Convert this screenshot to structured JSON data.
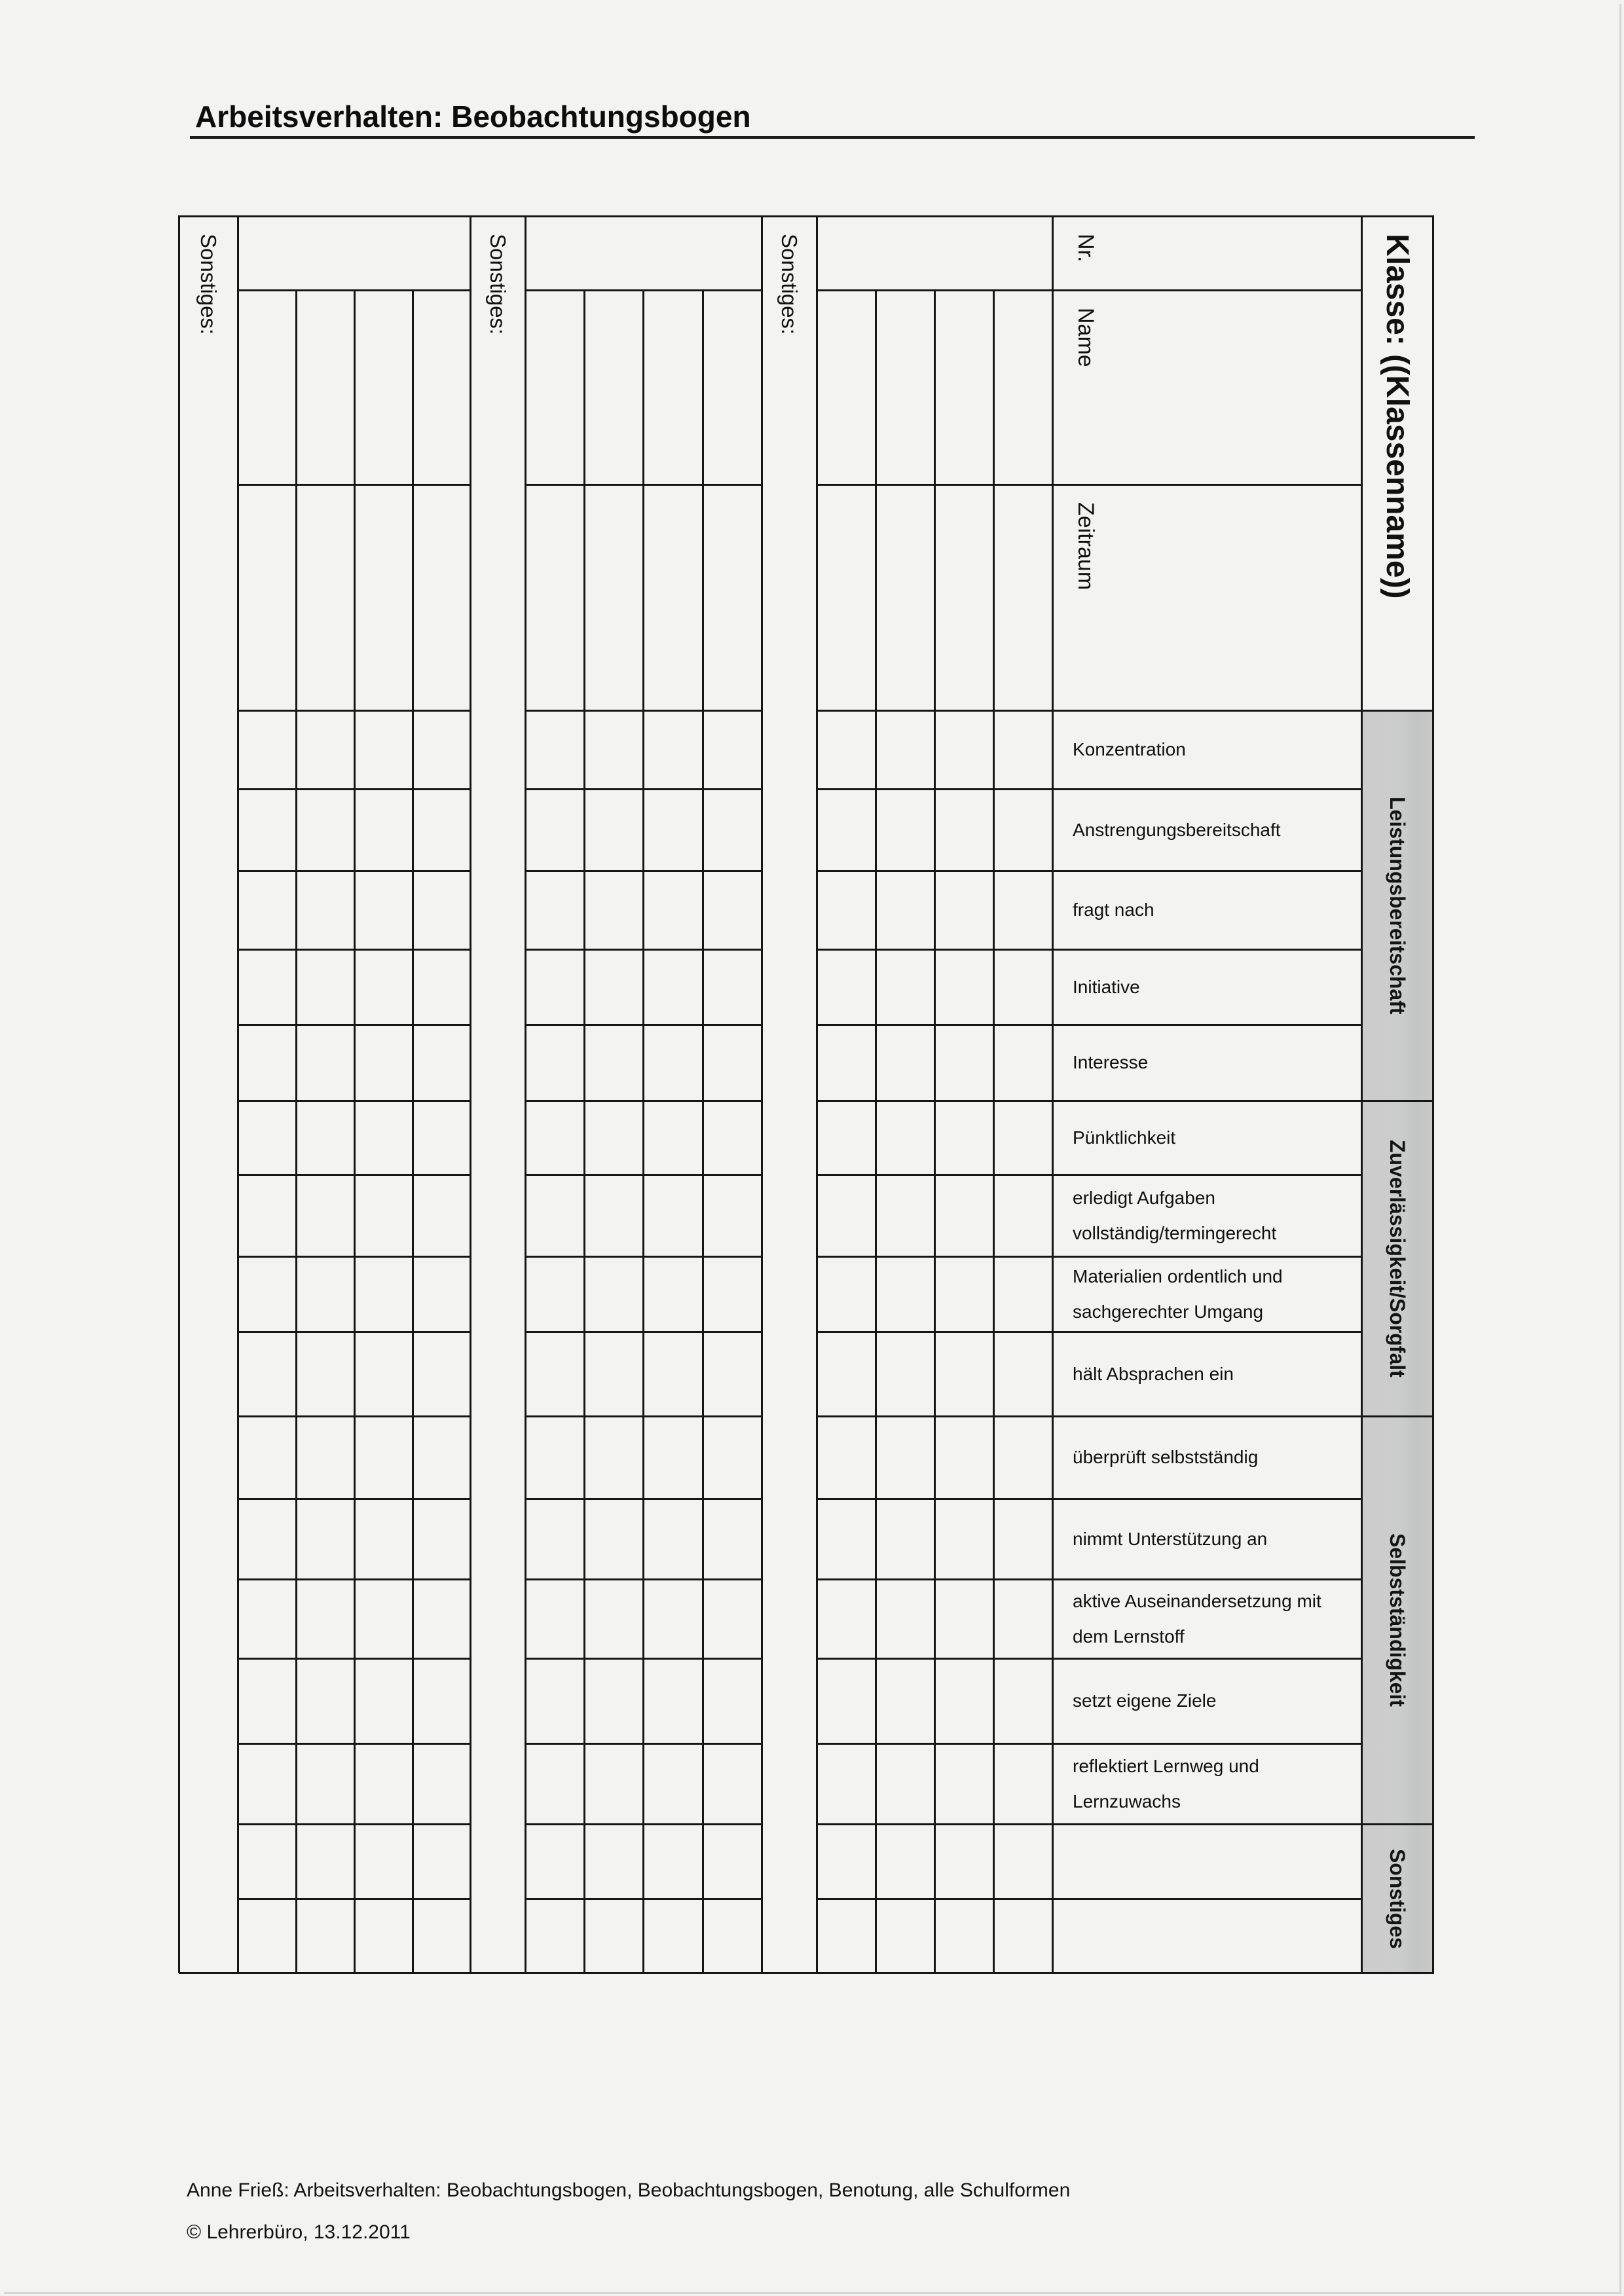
{
  "page": {
    "title": "Arbeitsverhalten: Beobachtungsbogen",
    "footer": {
      "line1": "Anne Frieß: Arbeitsverhalten: Beobachtungsbogen, Beobachtungsbogen, Benotung, alle Schulformen",
      "line2": "© Lehrerbüro, 13.12.2011"
    }
  },
  "table": {
    "class_header": "Klasse: ((Klassenname))",
    "column_headers": [
      "Nr.",
      "Name",
      "Zeitraum"
    ],
    "notes_column_label": "Sonstiges:",
    "categories": [
      {
        "label": "Leistungsbereitschaft"
      },
      {
        "label": "Zuverlässigkeit/Sorgfalt"
      },
      {
        "label": "Selbstständigkeit"
      },
      {
        "label": "Sonstiges"
      }
    ],
    "criteria": [
      "Konzentration",
      "Anstrengungsbereitschaft",
      "fragt nach",
      "Initiative",
      "Interesse",
      "Pünktlichkeit",
      "erledigt Aufgaben vollständig/termingerecht",
      "Materialien ordentlich und sachgerechter Umgang",
      "hält Absprachen ein",
      "überprüft selbstständig",
      "nimmt Unterstützung an",
      "aktive Auseinandersetzung mit dem Lernstoff",
      "setzt eigene Ziele",
      "reflektiert Lernweg und Lernzuwachs"
    ]
  }
}
